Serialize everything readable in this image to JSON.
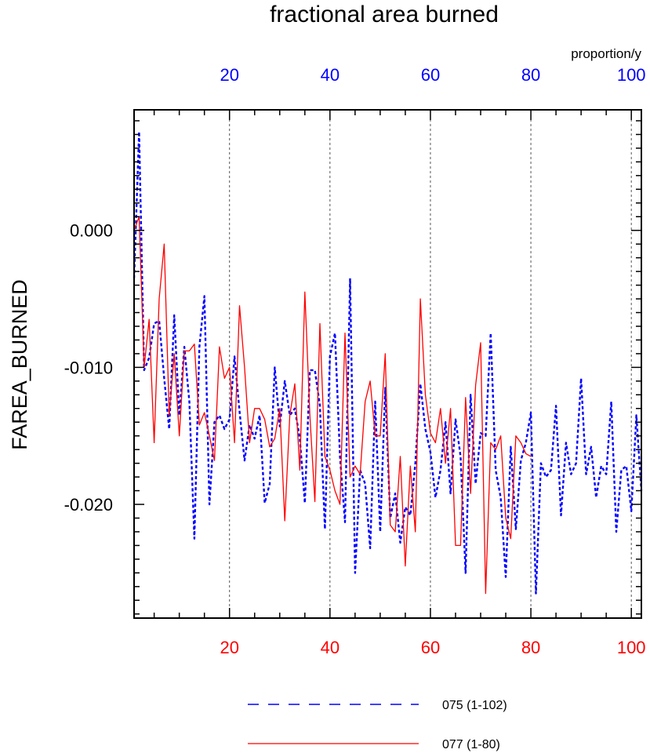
{
  "chart_data": {
    "type": "line",
    "title": "fractional area burned",
    "ylabel": "FAREA_BURNED",
    "units": "proportion/y",
    "xlim": [
      1,
      102
    ],
    "ylim": [
      -0.0283,
      0.0088
    ],
    "yticks": [
      {
        "value": 0.0,
        "label": "0.000"
      },
      {
        "value": -0.01,
        "label": "-0.010"
      },
      {
        "value": -0.02,
        "label": "-0.020"
      }
    ],
    "xticks_top": [
      {
        "value": 20,
        "label": "20"
      },
      {
        "value": 40,
        "label": "40"
      },
      {
        "value": 60,
        "label": "60"
      },
      {
        "value": 80,
        "label": "80"
      },
      {
        "value": 100,
        "label": "100"
      }
    ],
    "xticks_bottom": [
      {
        "value": 20,
        "label": "20"
      },
      {
        "value": 40,
        "label": "40"
      },
      {
        "value": 60,
        "label": "60"
      },
      {
        "value": 80,
        "label": "80"
      },
      {
        "value": 100,
        "label": "100"
      }
    ],
    "gridlines_x": [
      20,
      40,
      60,
      80,
      100
    ],
    "series": [
      {
        "name": "075 (1-102)",
        "color": "#0000ff",
        "style": "dashed",
        "x_start": 1,
        "values": [
          -0.0035,
          0.0072,
          -0.0102,
          -0.0093,
          -0.0068,
          -0.0066,
          -0.0108,
          -0.0145,
          -0.0062,
          -0.0135,
          -0.0085,
          -0.0125,
          -0.0225,
          -0.0085,
          -0.0048,
          -0.02,
          -0.014,
          -0.0135,
          -0.0145,
          -0.0138,
          -0.0092,
          -0.0132,
          -0.0168,
          -0.0142,
          -0.0152,
          -0.0135,
          -0.0199,
          -0.0185,
          -0.01,
          -0.0143,
          -0.011,
          -0.0135,
          -0.013,
          -0.0152,
          -0.0199,
          -0.0102,
          -0.0102,
          -0.0128,
          -0.0218,
          -0.0092,
          -0.0075,
          -0.0165,
          -0.0213,
          -0.0035,
          -0.025,
          -0.0175,
          -0.0185,
          -0.0232,
          -0.0125,
          -0.022,
          -0.0115,
          -0.021,
          -0.0192,
          -0.0228,
          -0.0202,
          -0.0208,
          -0.017,
          -0.0112,
          -0.0145,
          -0.0162,
          -0.0195,
          -0.0175,
          -0.014,
          -0.0192,
          -0.0138,
          -0.0165,
          -0.025,
          -0.012,
          -0.0185,
          -0.0148,
          -0.015,
          -0.0075,
          -0.0175,
          -0.0195,
          -0.0253,
          -0.0158,
          -0.0218,
          -0.0168,
          -0.0155,
          -0.0133,
          -0.0265,
          -0.017,
          -0.018,
          -0.0175,
          -0.0128,
          -0.0208,
          -0.0155,
          -0.0178,
          -0.017,
          -0.0108,
          -0.0178,
          -0.0158,
          -0.0195,
          -0.0172,
          -0.0178,
          -0.0125,
          -0.022,
          -0.0175,
          -0.0172,
          -0.0205,
          -0.0135,
          -0.019
        ]
      },
      {
        "name": "077 (1-80)",
        "color": "#ff0000",
        "style": "solid",
        "x_start": 1,
        "values": [
          0.0,
          0.001,
          -0.01,
          -0.0065,
          -0.0155,
          -0.005,
          -0.001,
          -0.0135,
          -0.009,
          -0.015,
          -0.0088,
          -0.0088,
          -0.0083,
          -0.0142,
          -0.0133,
          -0.015,
          -0.0168,
          -0.0085,
          -0.0108,
          -0.01,
          -0.0155,
          -0.0055,
          -0.01,
          -0.0155,
          -0.013,
          -0.013,
          -0.0138,
          -0.0158,
          -0.0152,
          -0.013,
          -0.0212,
          -0.0135,
          -0.0112,
          -0.0175,
          -0.0045,
          -0.0135,
          -0.0198,
          -0.0068,
          -0.0165,
          -0.0175,
          -0.019,
          -0.02,
          -0.0075,
          -0.018,
          -0.0172,
          -0.0178,
          -0.0125,
          -0.011,
          -0.015,
          -0.015,
          -0.009,
          -0.0215,
          -0.022,
          -0.0165,
          -0.0245,
          -0.0172,
          -0.022,
          -0.005,
          -0.012,
          -0.0148,
          -0.0155,
          -0.013,
          -0.017,
          -0.013,
          -0.023,
          -0.023,
          -0.0122,
          -0.0192,
          -0.0113,
          -0.0082,
          -0.0265,
          -0.0155,
          -0.016,
          -0.015,
          -0.021,
          -0.0225,
          -0.015,
          -0.0155,
          -0.0163,
          -0.0165
        ]
      }
    ]
  }
}
